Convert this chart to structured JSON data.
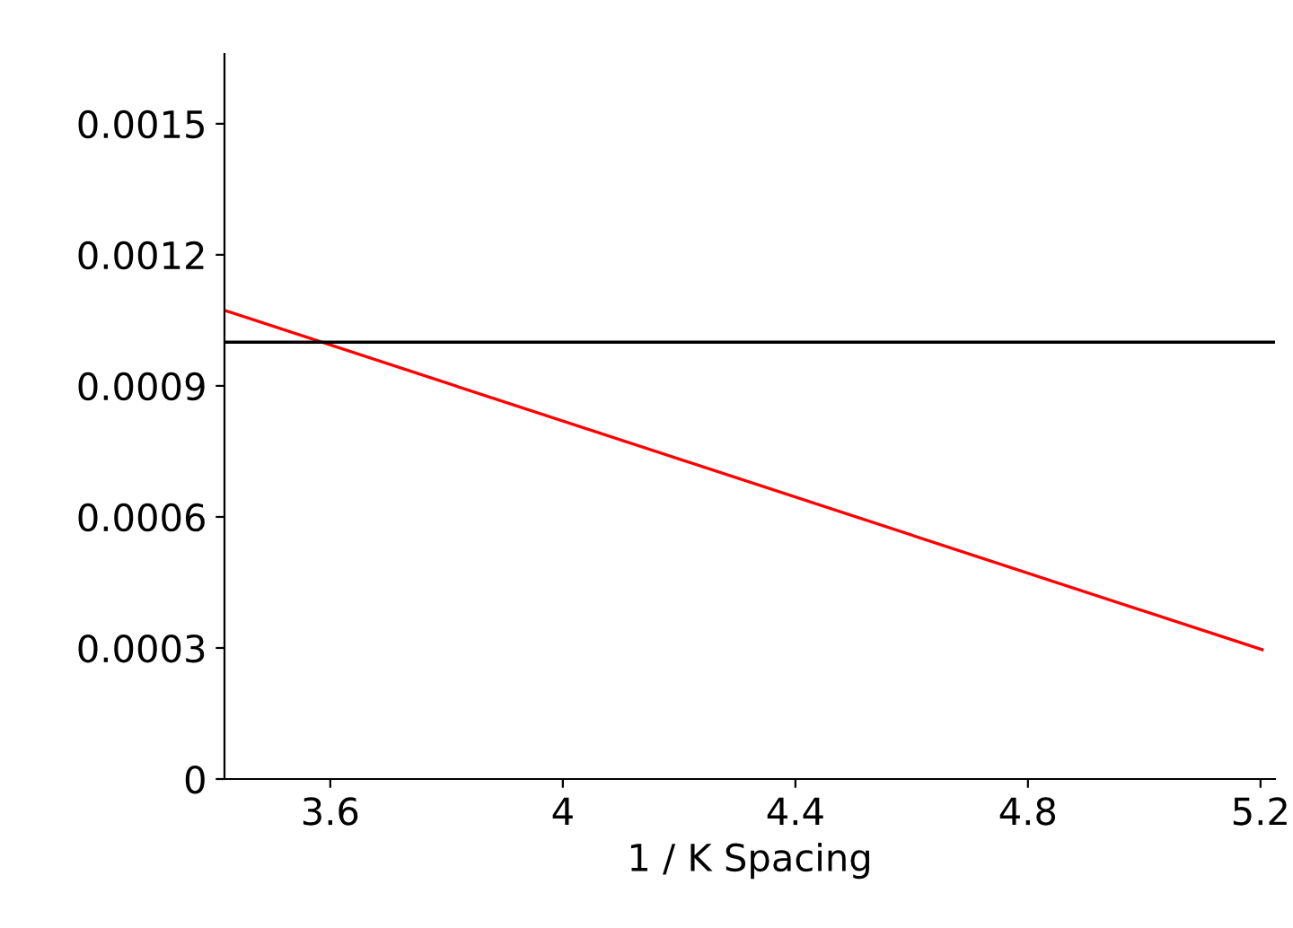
{
  "chart_data": {
    "type": "line",
    "xlabel": "1 / K Spacing",
    "series": [
      {
        "color": "#ff0000",
        "x": [
          3.418,
          5.203
        ],
        "values": [
          0.001073,
          0.000296
        ]
      }
    ],
    "ref_lines": [
      {
        "axis": "y",
        "value": 0.001,
        "color": "#000000"
      }
    ],
    "xlim": [
      3.418,
      5.225
    ],
    "ylim": [
      0,
      0.00166
    ],
    "xticks": [
      3.6,
      4,
      4.4,
      4.8,
      5.2
    ],
    "yticks": [
      0,
      0.0003,
      0.0006,
      0.0009,
      0.0012,
      0.0015
    ],
    "grid": false,
    "legend": false
  }
}
